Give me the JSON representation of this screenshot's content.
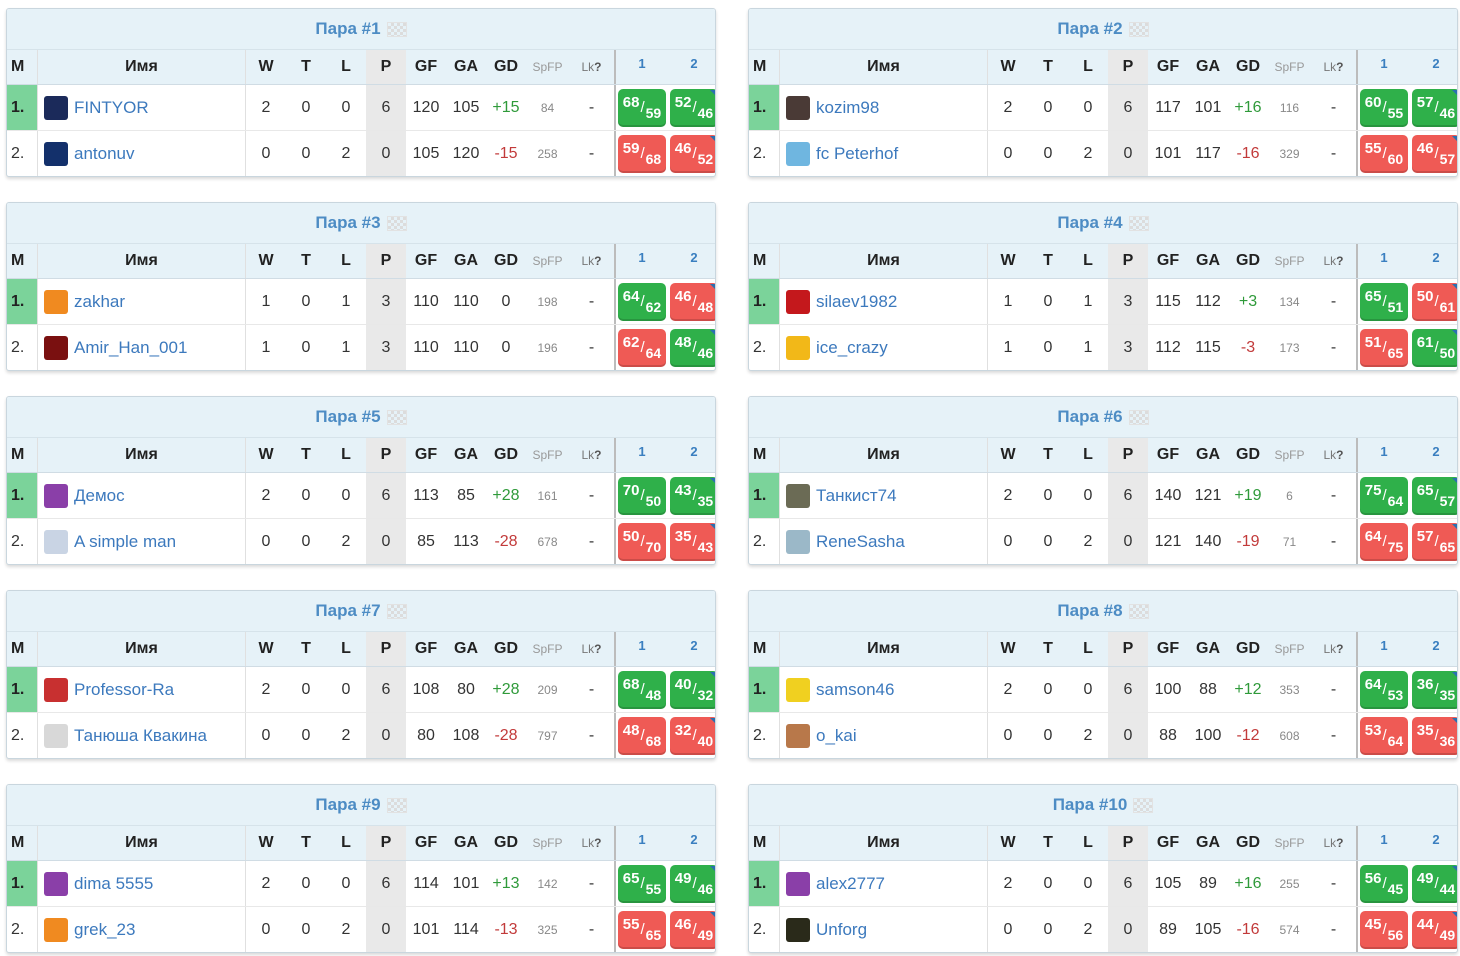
{
  "colors": {
    "win": "#2fb04a",
    "loss": "#ef5a55",
    "header_bg": "#e6f2f8",
    "title": "#4d8cc4",
    "name": "#3c79bd"
  },
  "headers": {
    "m": "M",
    "name": "Имя",
    "w": "W",
    "t": "T",
    "l": "L",
    "p": "P",
    "gf": "GF",
    "ga": "GA",
    "gd": "GD",
    "spfp": "SpFP",
    "lk": "Lk",
    "lk_sup": "?",
    "g1": "1",
    "g2": "2"
  },
  "pairs": [
    {
      "title": "Пара #1",
      "rows": [
        {
          "m": "1.",
          "name": "FINTYOR",
          "avatar": "jersey-icon",
          "avatar_color": "#1b2a5a",
          "w": "2",
          "t": "0",
          "l": "0",
          "p": "6",
          "gf": "120",
          "ga": "105",
          "gd": "+15",
          "spfp": "84",
          "lk": "-",
          "g1": {
            "a": "68",
            "b": "59",
            "r": "win"
          },
          "g2": {
            "a": "52",
            "b": "46",
            "r": "win"
          }
        },
        {
          "m": "2.",
          "name": "antonuv",
          "avatar": "jersey-icon",
          "avatar_color": "#13306b",
          "w": "0",
          "t": "0",
          "l": "2",
          "p": "0",
          "gf": "105",
          "ga": "120",
          "gd": "-15",
          "spfp": "258",
          "lk": "-",
          "g1": {
            "a": "59",
            "b": "68",
            "r": "loss"
          },
          "g2": {
            "a": "46",
            "b": "52",
            "r": "loss"
          }
        }
      ]
    },
    {
      "title": "Пара #2",
      "rows": [
        {
          "m": "1.",
          "name": "kozim98",
          "avatar": "photo-icon",
          "avatar_color": "#4a3a36",
          "w": "2",
          "t": "0",
          "l": "0",
          "p": "6",
          "gf": "117",
          "ga": "101",
          "gd": "+16",
          "spfp": "116",
          "lk": "-",
          "g1": {
            "a": "60",
            "b": "55",
            "r": "win"
          },
          "g2": {
            "a": "57",
            "b": "46",
            "r": "win"
          }
        },
        {
          "m": "2.",
          "name": "fc Peterhof",
          "avatar": "jersey-icon",
          "avatar_color": "#6fb6e0",
          "w": "0",
          "t": "0",
          "l": "2",
          "p": "0",
          "gf": "101",
          "ga": "117",
          "gd": "-16",
          "spfp": "329",
          "lk": "-",
          "g1": {
            "a": "55",
            "b": "60",
            "r": "loss"
          },
          "g2": {
            "a": "46",
            "b": "57",
            "r": "loss"
          }
        }
      ]
    },
    {
      "title": "Пара #3",
      "rows": [
        {
          "m": "1.",
          "name": "zakhar",
          "avatar": "jersey-icon",
          "avatar_color": "#f08a20",
          "w": "1",
          "t": "0",
          "l": "1",
          "p": "3",
          "gf": "110",
          "ga": "110",
          "gd": "0",
          "spfp": "198",
          "lk": "-",
          "g1": {
            "a": "64",
            "b": "62",
            "r": "win"
          },
          "g2": {
            "a": "46",
            "b": "48",
            "r": "loss"
          }
        },
        {
          "m": "2.",
          "name": "Amir_Han_001",
          "avatar": "jersey-icon",
          "avatar_color": "#7a1010",
          "w": "1",
          "t": "0",
          "l": "1",
          "p": "3",
          "gf": "110",
          "ga": "110",
          "gd": "0",
          "spfp": "196",
          "lk": "-",
          "g1": {
            "a": "62",
            "b": "64",
            "r": "loss"
          },
          "g2": {
            "a": "48",
            "b": "46",
            "r": "win"
          }
        }
      ]
    },
    {
      "title": "Пара #4",
      "rows": [
        {
          "m": "1.",
          "name": "silaev1982",
          "avatar": "badge-icon",
          "avatar_color": "#c4181c",
          "w": "1",
          "t": "0",
          "l": "1",
          "p": "3",
          "gf": "115",
          "ga": "112",
          "gd": "+3",
          "spfp": "134",
          "lk": "-",
          "g1": {
            "a": "65",
            "b": "51",
            "r": "win"
          },
          "g2": {
            "a": "50",
            "b": "61",
            "r": "loss"
          }
        },
        {
          "m": "2.",
          "name": "ice_crazy",
          "avatar": "star-icon",
          "avatar_color": "#f2b818",
          "w": "1",
          "t": "0",
          "l": "1",
          "p": "3",
          "gf": "112",
          "ga": "115",
          "gd": "-3",
          "spfp": "173",
          "lk": "-",
          "g1": {
            "a": "51",
            "b": "65",
            "r": "loss"
          },
          "g2": {
            "a": "61",
            "b": "50",
            "r": "win"
          }
        }
      ]
    },
    {
      "title": "Пара #5",
      "rows": [
        {
          "m": "1.",
          "name": "Демос",
          "avatar": "jersey-icon",
          "avatar_color": "#8a3fa8",
          "w": "2",
          "t": "0",
          "l": "0",
          "p": "6",
          "gf": "113",
          "ga": "85",
          "gd": "+28",
          "spfp": "161",
          "lk": "-",
          "g1": {
            "a": "70",
            "b": "50",
            "r": "win"
          },
          "g2": {
            "a": "43",
            "b": "35",
            "r": "win"
          }
        },
        {
          "m": "2.",
          "name": "A simple man",
          "avatar": "jersey-icon",
          "avatar_color": "#c9d4e4",
          "w": "0",
          "t": "0",
          "l": "2",
          "p": "0",
          "gf": "85",
          "ga": "113",
          "gd": "-28",
          "spfp": "678",
          "lk": "-",
          "g1": {
            "a": "50",
            "b": "70",
            "r": "loss"
          },
          "g2": {
            "a": "35",
            "b": "43",
            "r": "loss"
          }
        }
      ]
    },
    {
      "title": "Пара #6",
      "rows": [
        {
          "m": "1.",
          "name": "Танкист74",
          "avatar": "tank-icon",
          "avatar_color": "#6b6b55",
          "w": "2",
          "t": "0",
          "l": "0",
          "p": "6",
          "gf": "140",
          "ga": "121",
          "gd": "+19",
          "spfp": "6",
          "lk": "-",
          "g1": {
            "a": "75",
            "b": "64",
            "r": "win"
          },
          "g2": {
            "a": "65",
            "b": "57",
            "r": "win"
          }
        },
        {
          "m": "2.",
          "name": "ReneSasha",
          "avatar": "number-icon",
          "avatar_color": "#9bb8c8",
          "w": "0",
          "t": "0",
          "l": "2",
          "p": "0",
          "gf": "121",
          "ga": "140",
          "gd": "-19",
          "spfp": "71",
          "lk": "-",
          "g1": {
            "a": "64",
            "b": "75",
            "r": "loss"
          },
          "g2": {
            "a": "57",
            "b": "65",
            "r": "loss"
          }
        }
      ]
    },
    {
      "title": "Пара #7",
      "rows": [
        {
          "m": "1.",
          "name": "Professor-Ra",
          "avatar": "character-icon",
          "avatar_color": "#c83030",
          "w": "2",
          "t": "0",
          "l": "0",
          "p": "6",
          "gf": "108",
          "ga": "80",
          "gd": "+28",
          "spfp": "209",
          "lk": "-",
          "g1": {
            "a": "68",
            "b": "48",
            "r": "win"
          },
          "g2": {
            "a": "40",
            "b": "32",
            "r": "win"
          }
        },
        {
          "m": "2.",
          "name": "Танюша Квакина",
          "avatar": "cat-icon",
          "avatar_color": "#d8d8d8",
          "w": "0",
          "t": "0",
          "l": "2",
          "p": "0",
          "gf": "80",
          "ga": "108",
          "gd": "-28",
          "spfp": "797",
          "lk": "-",
          "g1": {
            "a": "48",
            "b": "68",
            "r": "loss"
          },
          "g2": {
            "a": "32",
            "b": "40",
            "r": "loss"
          }
        }
      ]
    },
    {
      "title": "Пара #8",
      "rows": [
        {
          "m": "1.",
          "name": "samson46",
          "avatar": "jersey-icon",
          "avatar_color": "#f0d020",
          "w": "2",
          "t": "0",
          "l": "0",
          "p": "6",
          "gf": "100",
          "ga": "88",
          "gd": "+12",
          "spfp": "353",
          "lk": "-",
          "g1": {
            "a": "64",
            "b": "53",
            "r": "win"
          },
          "g2": {
            "a": "36",
            "b": "35",
            "r": "win"
          }
        },
        {
          "m": "2.",
          "name": "o_kai",
          "avatar": "face-icon",
          "avatar_color": "#b8784a",
          "w": "0",
          "t": "0",
          "l": "2",
          "p": "0",
          "gf": "88",
          "ga": "100",
          "gd": "-12",
          "spfp": "608",
          "lk": "-",
          "g1": {
            "a": "53",
            "b": "64",
            "r": "loss"
          },
          "g2": {
            "a": "35",
            "b": "36",
            "r": "loss"
          }
        }
      ]
    },
    {
      "title": "Пара #9",
      "rows": [
        {
          "m": "1.",
          "name": "dima 5555",
          "avatar": "jersey-icon",
          "avatar_color": "#8a3fa8",
          "w": "2",
          "t": "0",
          "l": "0",
          "p": "6",
          "gf": "114",
          "ga": "101",
          "gd": "+13",
          "spfp": "142",
          "lk": "-",
          "g1": {
            "a": "65",
            "b": "55",
            "r": "win"
          },
          "g2": {
            "a": "49",
            "b": "46",
            "r": "win"
          }
        },
        {
          "m": "2.",
          "name": "grek_23",
          "avatar": "jersey-icon",
          "avatar_color": "#f08a20",
          "w": "0",
          "t": "0",
          "l": "2",
          "p": "0",
          "gf": "101",
          "ga": "114",
          "gd": "-13",
          "spfp": "325",
          "lk": "-",
          "g1": {
            "a": "55",
            "b": "65",
            "r": "loss"
          },
          "g2": {
            "a": "46",
            "b": "49",
            "r": "loss"
          }
        }
      ]
    },
    {
      "title": "Пара #10",
      "rows": [
        {
          "m": "1.",
          "name": "alex2777",
          "avatar": "jersey-icon",
          "avatar_color": "#8a3fa8",
          "w": "2",
          "t": "0",
          "l": "0",
          "p": "6",
          "gf": "105",
          "ga": "89",
          "gd": "+16",
          "spfp": "255",
          "lk": "-",
          "g1": {
            "a": "56",
            "b": "45",
            "r": "win"
          },
          "g2": {
            "a": "49",
            "b": "44",
            "r": "win"
          }
        },
        {
          "m": "2.",
          "name": "Unforg",
          "avatar": "jersey-icon",
          "avatar_color": "#2a2a1a",
          "w": "0",
          "t": "0",
          "l": "2",
          "p": "0",
          "gf": "89",
          "ga": "105",
          "gd": "-16",
          "spfp": "574",
          "lk": "-",
          "g1": {
            "a": "45",
            "b": "56",
            "r": "loss"
          },
          "g2": {
            "a": "44",
            "b": "49",
            "r": "loss"
          }
        }
      ]
    }
  ]
}
